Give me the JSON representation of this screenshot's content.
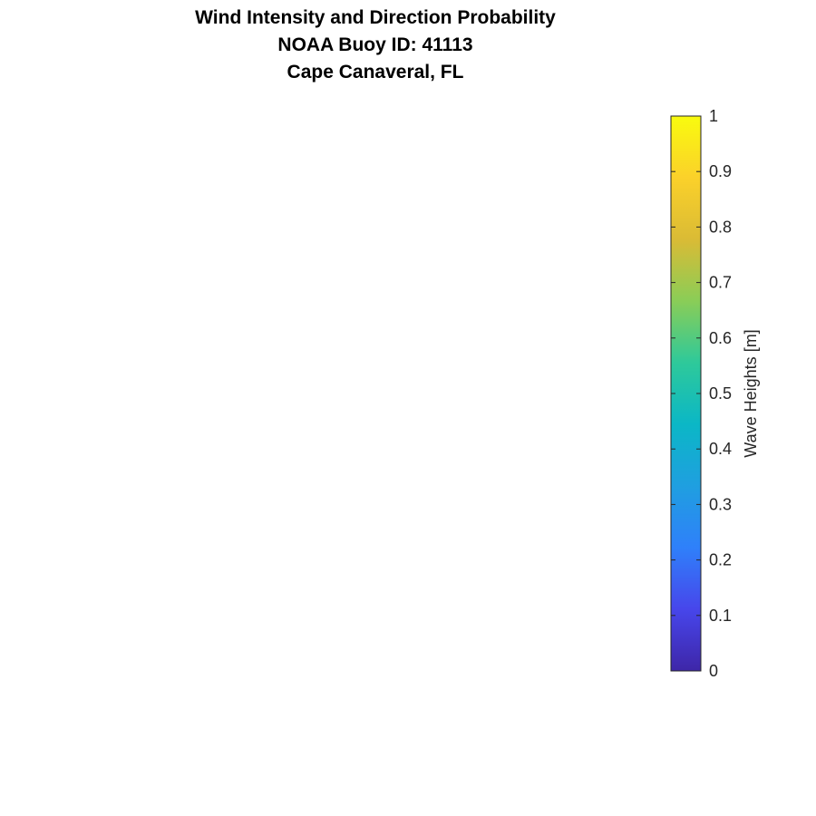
{
  "chart_data": {
    "type": "heatmap",
    "title": [
      "Wind Intensity and Direction Probability",
      "NOAA Buoy ID: 41113",
      "Cape Canaveral, FL"
    ],
    "series": [],
    "colorbar": {
      "label": "Wave Heights [m]",
      "range": [
        0,
        1
      ],
      "ticks": [
        0,
        0.1,
        0.2,
        0.3,
        0.4,
        0.5,
        0.6,
        0.7,
        0.8,
        0.9,
        1
      ],
      "tick_labels": [
        "0",
        "0.1",
        "0.2",
        "0.3",
        "0.4",
        "0.5",
        "0.6",
        "0.7",
        "0.8",
        "0.9",
        "1"
      ],
      "colormap": "parula",
      "colormap_stops": [
        "#3e26a8",
        "#4746eb",
        "#2f80fa",
        "#1f9fe0",
        "#0bb7c6",
        "#2ec99a",
        "#8acd57",
        "#dabb35",
        "#fbd12a",
        "#f9fb0e"
      ],
      "orientation": "vertical",
      "placement": "right"
    }
  }
}
